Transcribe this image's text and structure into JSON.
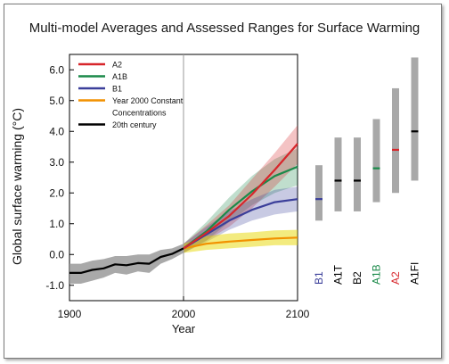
{
  "chart_data": {
    "type": "line",
    "title": "Multi-model Averages and Assessed Ranges for Surface Warming",
    "xlabel": "Year",
    "ylabel": "Global surface warming (°C)",
    "xlim": [
      1900,
      2100
    ],
    "ylim": [
      -1.5,
      6.5
    ],
    "xticks": [
      1900,
      2000,
      2100
    ],
    "yticks": [
      "-1.0",
      "0.0",
      "1.0",
      "2.0",
      "3.0",
      "4.0",
      "5.0",
      "6.0"
    ],
    "grid": false,
    "legend_position": "top-left",
    "colors": {
      "A2": "#d7262b",
      "A1B": "#1b8a4a",
      "B1": "#3b3f9a",
      "Y2000": "#f29100",
      "20th": "#000000",
      "band_20th": "#9a9a9a",
      "range_bar": "#a8a8a8"
    },
    "legend": [
      {
        "key": "A2",
        "label": "A2"
      },
      {
        "key": "A1B",
        "label": "A1B"
      },
      {
        "key": "B1",
        "label": "B1"
      },
      {
        "key": "Y2000",
        "label": "Year 2000 Constant",
        "label2": "Concentrations"
      },
      {
        "key": "20th",
        "label": "20th century"
      }
    ],
    "series": [
      {
        "key": "20th",
        "name": "20th century",
        "x": [
          1900,
          1910,
          1920,
          1930,
          1940,
          1950,
          1960,
          1970,
          1980,
          1990,
          2000
        ],
        "y": [
          -0.6,
          -0.6,
          -0.5,
          -0.45,
          -0.32,
          -0.35,
          -0.28,
          -0.3,
          -0.08,
          0.02,
          0.2
        ],
        "low": [
          -0.95,
          -0.95,
          -0.85,
          -0.75,
          -0.6,
          -0.65,
          -0.55,
          -0.6,
          -0.3,
          -0.15,
          0.05
        ],
        "high": [
          -0.3,
          -0.3,
          -0.2,
          -0.15,
          -0.05,
          -0.05,
          0.0,
          0.0,
          0.15,
          0.2,
          0.35
        ]
      },
      {
        "key": "A2",
        "name": "A2",
        "x": [
          2000,
          2020,
          2040,
          2060,
          2080,
          2100
        ],
        "y": [
          0.2,
          0.7,
          1.25,
          1.95,
          2.75,
          3.6
        ],
        "low": [
          0.05,
          0.45,
          0.9,
          1.5,
          2.2,
          2.95
        ],
        "high": [
          0.35,
          0.95,
          1.6,
          2.45,
          3.3,
          4.2
        ]
      },
      {
        "key": "A1B",
        "name": "A1B",
        "x": [
          2000,
          2020,
          2040,
          2060,
          2080,
          2100
        ],
        "y": [
          0.2,
          0.75,
          1.45,
          2.05,
          2.55,
          2.85
        ],
        "low": [
          0.05,
          0.45,
          1.05,
          1.6,
          2.0,
          2.25
        ],
        "high": [
          0.35,
          1.05,
          1.85,
          2.55,
          3.1,
          3.45
        ]
      },
      {
        "key": "B1",
        "name": "B1",
        "x": [
          2000,
          2020,
          2040,
          2060,
          2080,
          2100
        ],
        "y": [
          0.2,
          0.65,
          1.1,
          1.45,
          1.7,
          1.8
        ],
        "low": [
          0.05,
          0.4,
          0.8,
          1.1,
          1.3,
          1.4
        ],
        "high": [
          0.35,
          0.9,
          1.4,
          1.8,
          2.1,
          2.2
        ]
      },
      {
        "key": "Y2000",
        "name": "Year 2000 Constant Concentrations",
        "x": [
          2000,
          2020,
          2040,
          2060,
          2080,
          2100
        ],
        "y": [
          0.2,
          0.35,
          0.42,
          0.47,
          0.52,
          0.55
        ],
        "low": [
          0.05,
          0.15,
          0.2,
          0.25,
          0.3,
          0.3
        ],
        "high": [
          0.35,
          0.6,
          0.68,
          0.72,
          0.78,
          0.8
        ]
      }
    ],
    "ranges_2100": [
      {
        "label": "B1",
        "color": "#3b3f9a",
        "low": 1.1,
        "high": 2.9,
        "best": 1.8
      },
      {
        "label": "A1T",
        "color": "#000000",
        "low": 1.4,
        "high": 3.8,
        "best": 2.4
      },
      {
        "label": "B2",
        "color": "#000000",
        "low": 1.4,
        "high": 3.8,
        "best": 2.4
      },
      {
        "label": "A1B",
        "color": "#1b8a4a",
        "low": 1.7,
        "high": 4.4,
        "best": 2.8
      },
      {
        "label": "A2",
        "color": "#d7262b",
        "low": 2.0,
        "high": 5.4,
        "best": 3.4
      },
      {
        "label": "A1FI",
        "color": "#000000",
        "low": 2.4,
        "high": 6.4,
        "best": 4.0
      }
    ]
  }
}
